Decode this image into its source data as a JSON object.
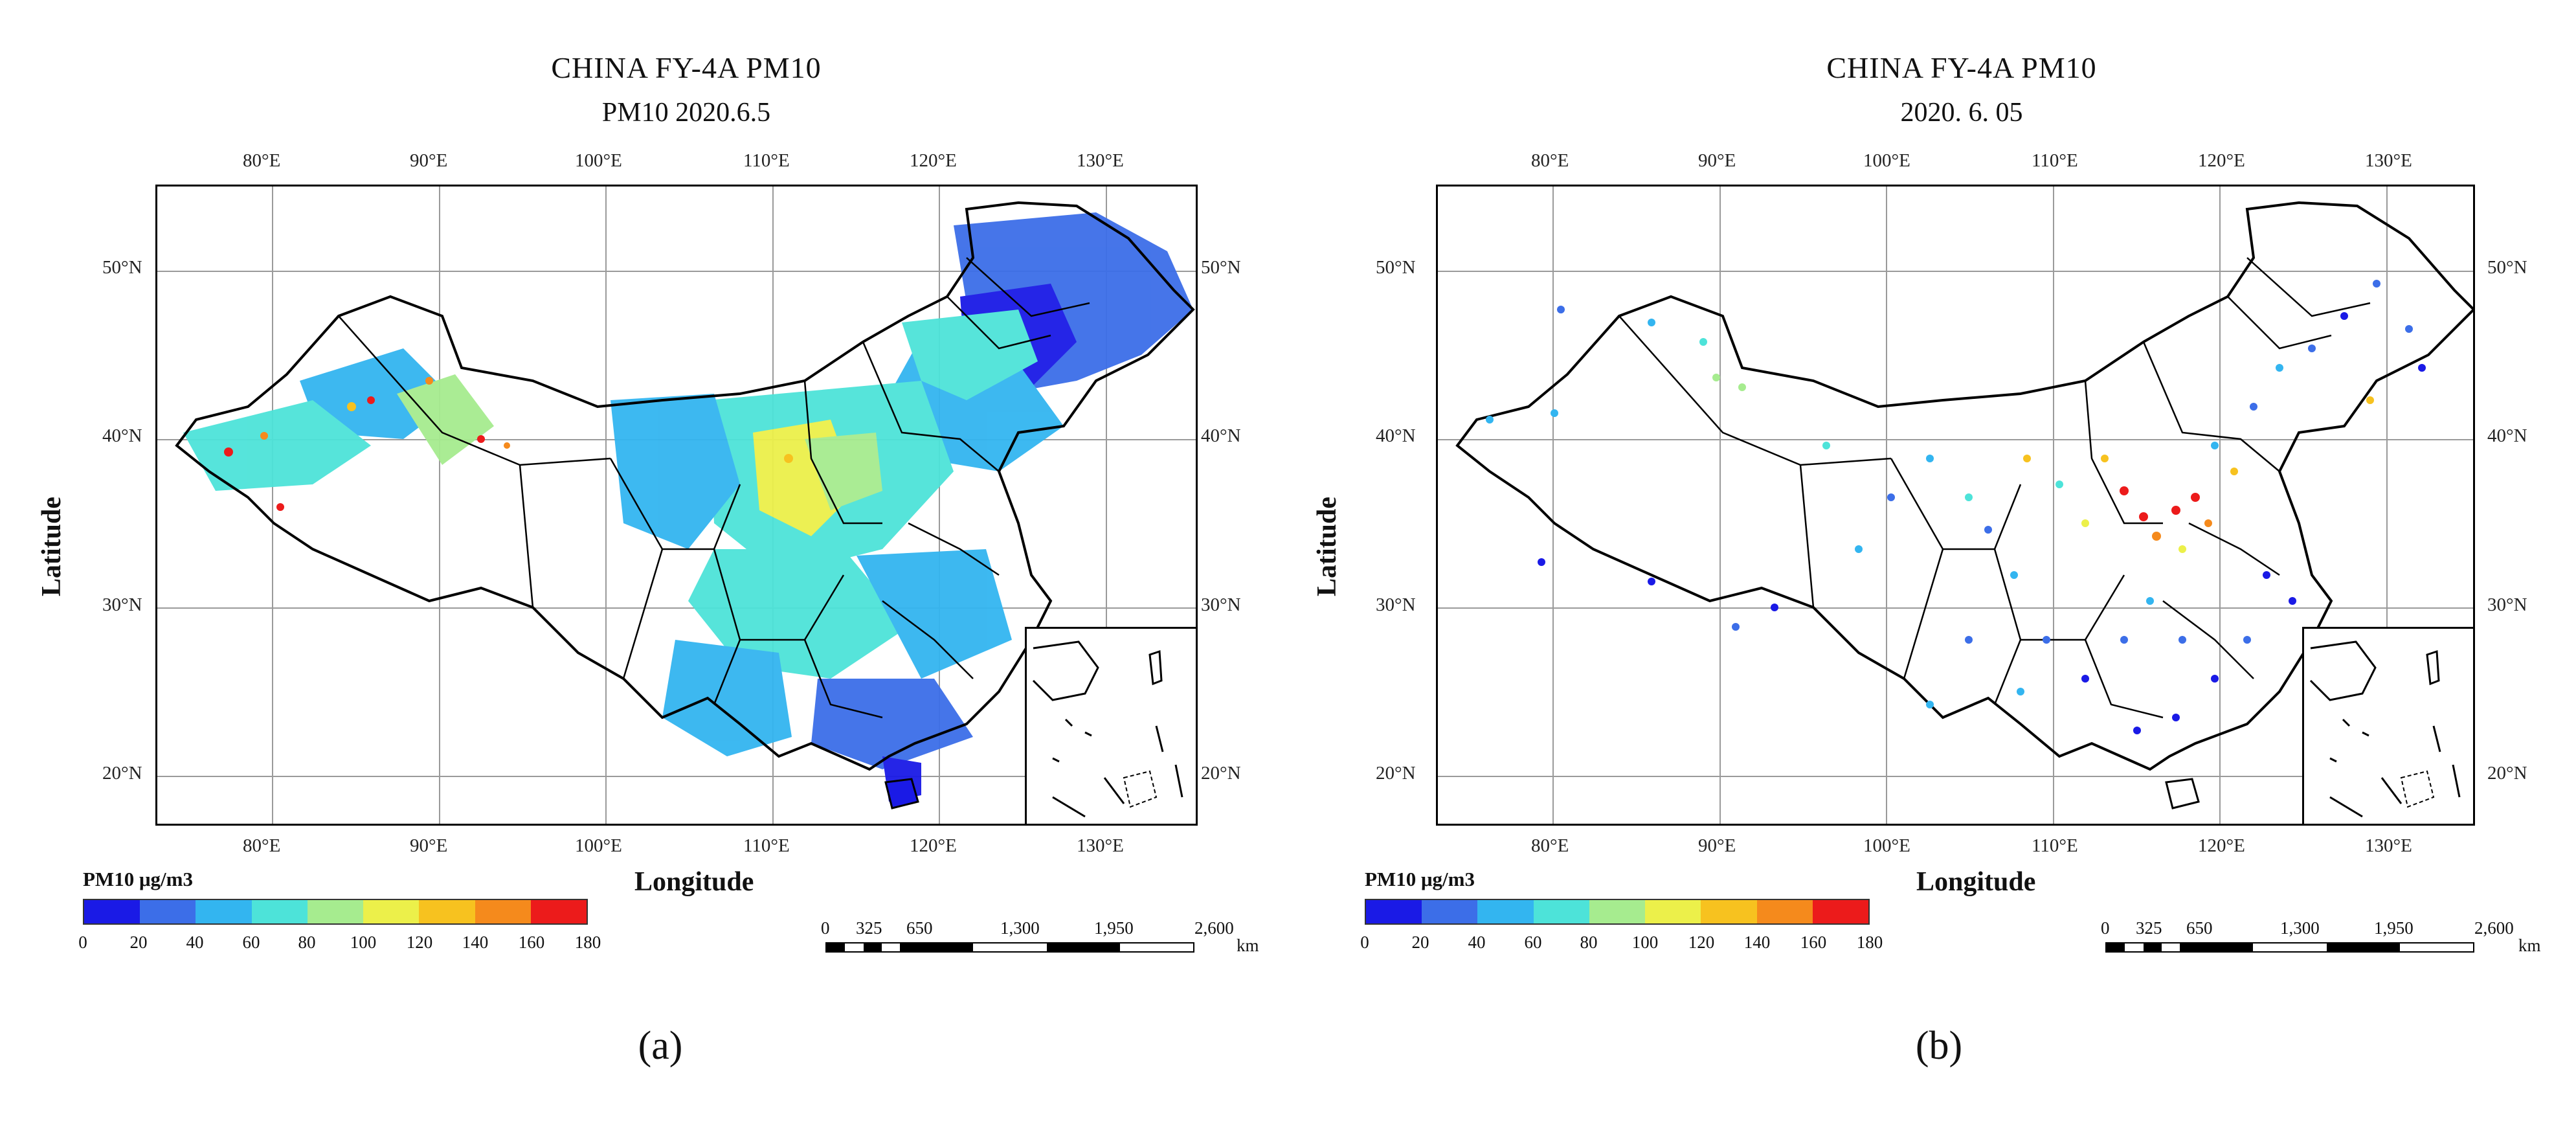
{
  "colors": {
    "scale": [
      "#1a1ae6",
      "#3c6ee8",
      "#33b5f0",
      "#4de3d9",
      "#a6ec8f",
      "#ecf04a",
      "#f7c21f",
      "#f58a1c",
      "#ec1b1b"
    ],
    "boundary": "#000000",
    "grid": "#9a9a9a"
  },
  "panels": [
    {
      "id": "a",
      "title": "CHINA FY-4A  PM10",
      "subtitle": "PM10 2020.6.5",
      "caption": "(a)",
      "xaxis_label": "Longitude",
      "yaxis_label": "Latitude",
      "lon_ticks": [
        "80°E",
        "90°E",
        "100°E",
        "110°E",
        "120°E",
        "130°E"
      ],
      "lat_ticks": [
        "50°N",
        "40°N",
        "30°N",
        "20°N"
      ],
      "legend_title": "PM10 μg/m3",
      "legend_ticks": [
        "0",
        "20",
        "40",
        "60",
        "80",
        "100",
        "120",
        "140",
        "160",
        "180"
      ],
      "scale_labels": [
        "0",
        "325",
        "650",
        "1,300",
        "1,950",
        "2,600"
      ],
      "scale_unit": "km"
    },
    {
      "id": "b",
      "title": "CHINA FY-4A  PM10",
      "subtitle": "2020. 6. 05",
      "caption": "(b)",
      "xaxis_label": "Longitude",
      "yaxis_label": "Latitude",
      "lon_ticks": [
        "80°E",
        "90°E",
        "100°E",
        "110°E",
        "120°E",
        "130°E"
      ],
      "lat_ticks": [
        "50°N",
        "40°N",
        "30°N",
        "20°N"
      ],
      "legend_title": "PM10 μg/m3",
      "legend_ticks": [
        "0",
        "20",
        "40",
        "60",
        "80",
        "100",
        "120",
        "140",
        "160",
        "180"
      ],
      "scale_labels": [
        "0",
        "325",
        "650",
        "1,300",
        "1,950",
        "2,600"
      ],
      "scale_unit": "km"
    }
  ]
}
